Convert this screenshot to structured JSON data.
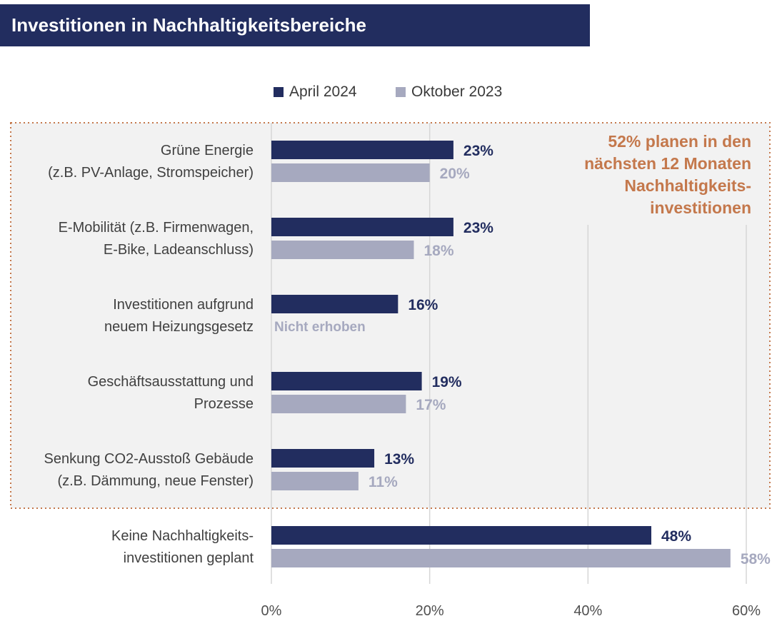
{
  "header": {
    "title": "Investitionen in Nachhaltigkeitsbereiche"
  },
  "colors": {
    "title_bg": "#222d5f",
    "series_primary": "#222d5f",
    "series_secondary": "#a6a9bf",
    "callout": "#c4784c",
    "highlight_box_bg": "#f2f2f2"
  },
  "callout": {
    "lines": [
      "52% planen in den",
      "nächsten 12 Monaten",
      "Nachhaltigkeits-",
      "investitionen"
    ]
  },
  "chart_data": {
    "type": "bar",
    "orientation": "horizontal",
    "categories": [
      [
        "Grüne Energie",
        "(z.B. PV-Anlage, Stromspeicher)"
      ],
      [
        "E-Mobilität (z.B. Firmenwagen,",
        "E-Bike, Ladeanschluss)"
      ],
      [
        "Investitionen aufgrund",
        "neuem Heizungsgesetz"
      ],
      [
        "Geschäftsausstattung und",
        "Prozesse"
      ],
      [
        "Senkung CO2-Ausstoß Gebäude",
        "(z.B. Dämmung, neue Fenster)"
      ],
      [
        "Keine Nachhaltigkeits-",
        "investitionen geplant"
      ]
    ],
    "series": [
      {
        "name": "April 2024",
        "values": [
          23,
          23,
          16,
          19,
          13,
          48
        ],
        "labels": [
          "23%",
          "23%",
          "16%",
          "19%",
          "13%",
          "48%"
        ]
      },
      {
        "name": "Oktober 2023",
        "values": [
          20,
          18,
          null,
          17,
          11,
          58
        ],
        "labels": [
          "20%",
          "18%",
          "Nicht erhoben",
          "17%",
          "11%",
          "58%"
        ]
      }
    ],
    "xlim": [
      0,
      60
    ],
    "xticks": [
      "0%",
      "20%",
      "40%",
      "60%"
    ],
    "grid": true,
    "legend_position": "top"
  }
}
